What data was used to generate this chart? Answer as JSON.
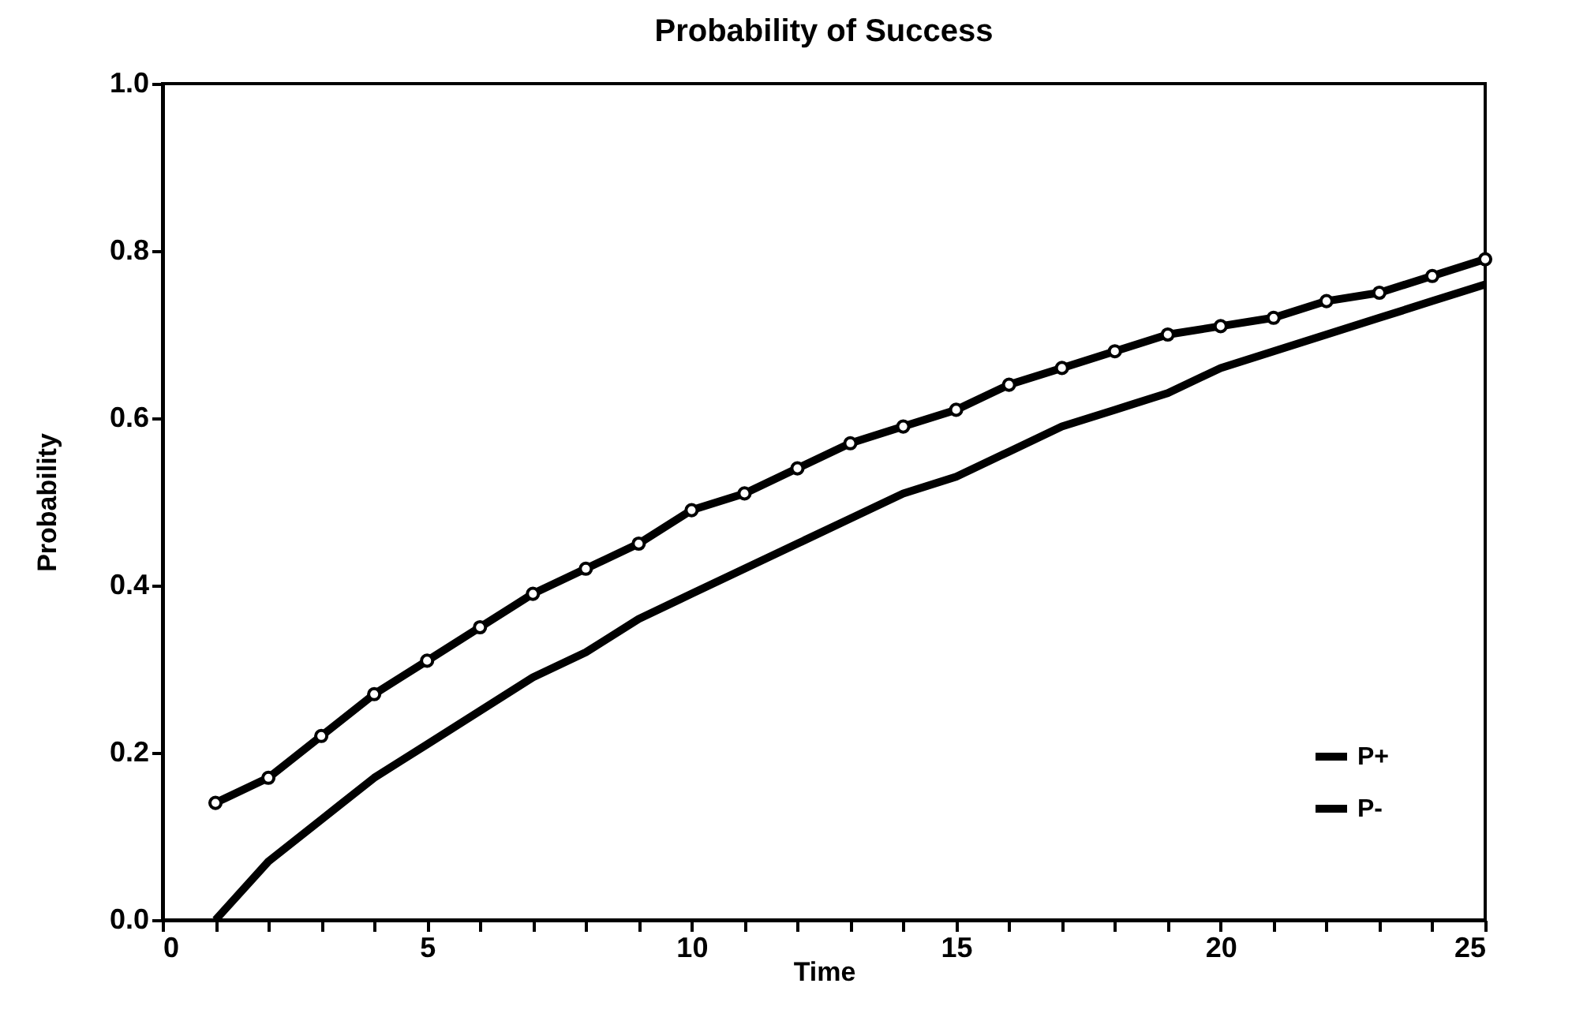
{
  "chart_data": {
    "type": "line",
    "title": "Probability of Success",
    "xlabel": "Time",
    "ylabel": "Probability",
    "x": [
      1,
      2,
      3,
      4,
      5,
      6,
      7,
      8,
      9,
      10,
      11,
      12,
      13,
      14,
      15,
      16,
      17,
      18,
      19,
      20,
      21,
      22,
      23,
      24,
      25
    ],
    "series": [
      {
        "name": "P+",
        "color": "#000000",
        "marker": "circle",
        "values": [
          0.14,
          0.17,
          0.22,
          0.27,
          0.31,
          0.35,
          0.39,
          0.42,
          0.45,
          0.49,
          0.51,
          0.54,
          0.57,
          0.59,
          0.61,
          0.64,
          0.66,
          0.68,
          0.7,
          0.71,
          0.72,
          0.74,
          0.75,
          0.77,
          0.79
        ]
      },
      {
        "name": "P-",
        "color": "#000000",
        "marker": "none",
        "values": [
          0.0,
          0.07,
          0.12,
          0.17,
          0.21,
          0.25,
          0.29,
          0.32,
          0.36,
          0.39,
          0.42,
          0.45,
          0.48,
          0.51,
          0.53,
          0.56,
          0.59,
          0.61,
          0.63,
          0.66,
          0.68,
          0.7,
          0.72,
          0.74,
          0.76
        ]
      }
    ],
    "xlim": [
      0,
      25
    ],
    "xticks": [
      0,
      {
        "value": 1,
        "label": null
      },
      {
        "value": 2,
        "label": null
      },
      {
        "value": 3,
        "label": null
      },
      {
        "value": 4,
        "label": null
      },
      5,
      {
        "value": 6,
        "label": null
      },
      {
        "value": 7,
        "label": null
      },
      {
        "value": 8,
        "label": null
      },
      {
        "value": 9,
        "label": null
      },
      10,
      {
        "value": 11,
        "label": null
      },
      {
        "value": 12,
        "label": null
      },
      {
        "value": 13,
        "label": null
      },
      {
        "value": 14,
        "label": null
      },
      15,
      {
        "value": 16,
        "label": null
      },
      {
        "value": 17,
        "label": null
      },
      {
        "value": 18,
        "label": null
      },
      {
        "value": 19,
        "label": null
      },
      20,
      {
        "value": 21,
        "label": null
      },
      {
        "value": 22,
        "label": null
      },
      {
        "value": 23,
        "label": null
      },
      {
        "value": 24,
        "label": null
      },
      25
    ],
    "ylim": [
      0,
      1
    ],
    "yticks": [
      {
        "value": 0,
        "label": "0.0"
      },
      {
        "value": 0.2,
        "label": "0.2"
      },
      {
        "value": 0.4,
        "label": "0.4"
      },
      {
        "value": 0.6,
        "label": "0.6"
      },
      {
        "value": 0.8,
        "label": "0.8"
      },
      {
        "value": 1,
        "label": "1.0"
      }
    ],
    "grid": false,
    "legend": "bottom right",
    "line_style": "solid"
  }
}
